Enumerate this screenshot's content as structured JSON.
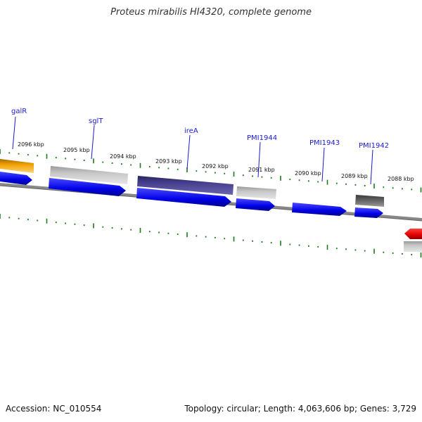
{
  "title": "Proteus mirabilis HI4320, complete genome",
  "footer": {
    "accession": "Accession: NC_010554",
    "summary": "Topology: circular; Length: 4,063,606 bp; Genes: 3,729"
  },
  "scale_labels": [
    "2096 kbp",
    "2095 kbp",
    "2094 kbp",
    "2093 kbp",
    "2092 kbp",
    "2091 kbp",
    "2090 kbp",
    "2089 kbp",
    "2088 kbp"
  ],
  "gene_labels": [
    "galR",
    "sglT",
    "ireA",
    "PMI1944",
    "PMI1943",
    "PMI1942"
  ],
  "colors": {
    "cds": "#0a0af0",
    "gene_grey": "#b4b4b4",
    "gene_dark": "#555555",
    "gene_purple": "#47418f",
    "gene_orange": "#f0a000",
    "gene_red": "#e00000",
    "backbone": "#888888",
    "tick": "#1d7a1d",
    "label": "#1a1ad0"
  }
}
